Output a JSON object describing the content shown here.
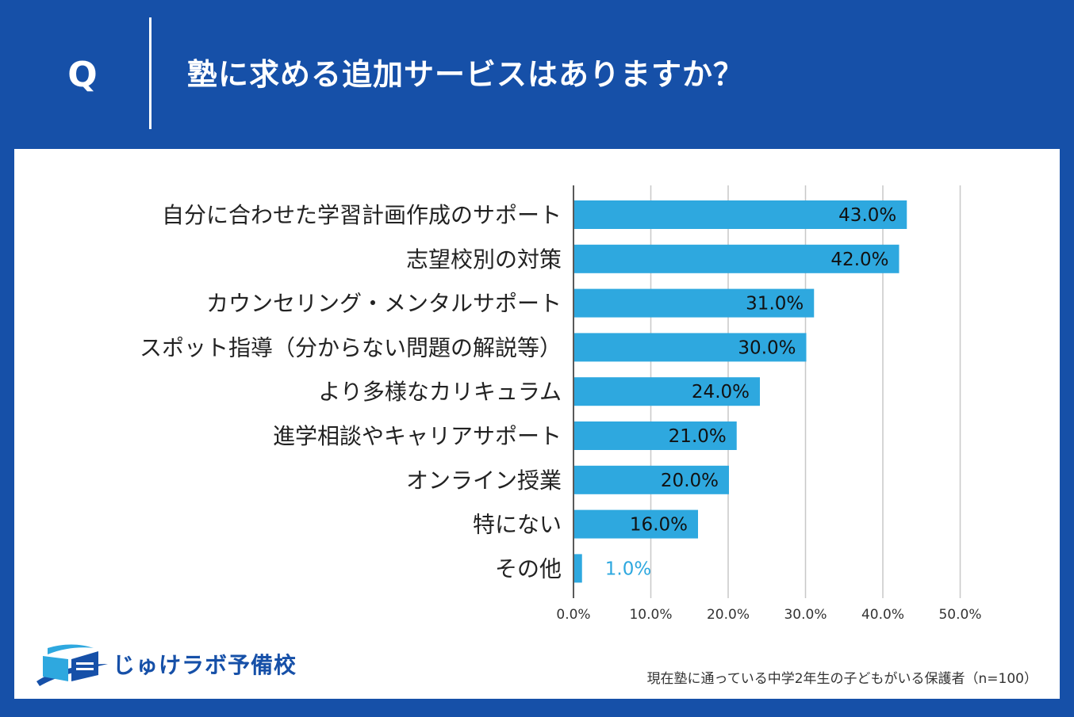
{
  "header": {
    "q_letter": "Q",
    "question": "塾に求める追加サービスはありますか？"
  },
  "colors": {
    "background": "#1650a8",
    "bar": "#2ea8df",
    "grid": "#c8c8c8",
    "axis": "#222222"
  },
  "chart_data": {
    "type": "bar",
    "orientation": "horizontal",
    "title": "塾に求める追加サービスはありますか？",
    "categories": [
      "自分に合わせた学習計画作成のサポート",
      "志望校別の対策",
      "カウンセリング・メンタルサポート",
      "スポット指導（分からない問題の解説等）",
      "より多様なカリキュラム",
      "進学相談やキャリアサポート",
      "オンライン授業",
      "特にない",
      "その他"
    ],
    "values": [
      43.0,
      42.0,
      31.0,
      30.0,
      24.0,
      21.0,
      20.0,
      16.0,
      1.0
    ],
    "value_labels": [
      "43.0%",
      "42.0%",
      "31.0%",
      "30.0%",
      "24.0%",
      "21.0%",
      "20.0%",
      "16.0%",
      "1.0%"
    ],
    "x_ticks": [
      0,
      10,
      20,
      30,
      40,
      50
    ],
    "x_tick_labels": [
      "0.0%",
      "10.0%",
      "20.0%",
      "30.0%",
      "40.0%",
      "50.0%"
    ],
    "xlim": [
      0,
      50
    ],
    "unit": "%",
    "grid": true,
    "xlabel": "",
    "ylabel": ""
  },
  "logo": {
    "text": "じゅけラボ予備校",
    "icon": "open-book-icon"
  },
  "footnote": "現在塾に通っている中学2年生の子どもがいる保護者（n=100）"
}
